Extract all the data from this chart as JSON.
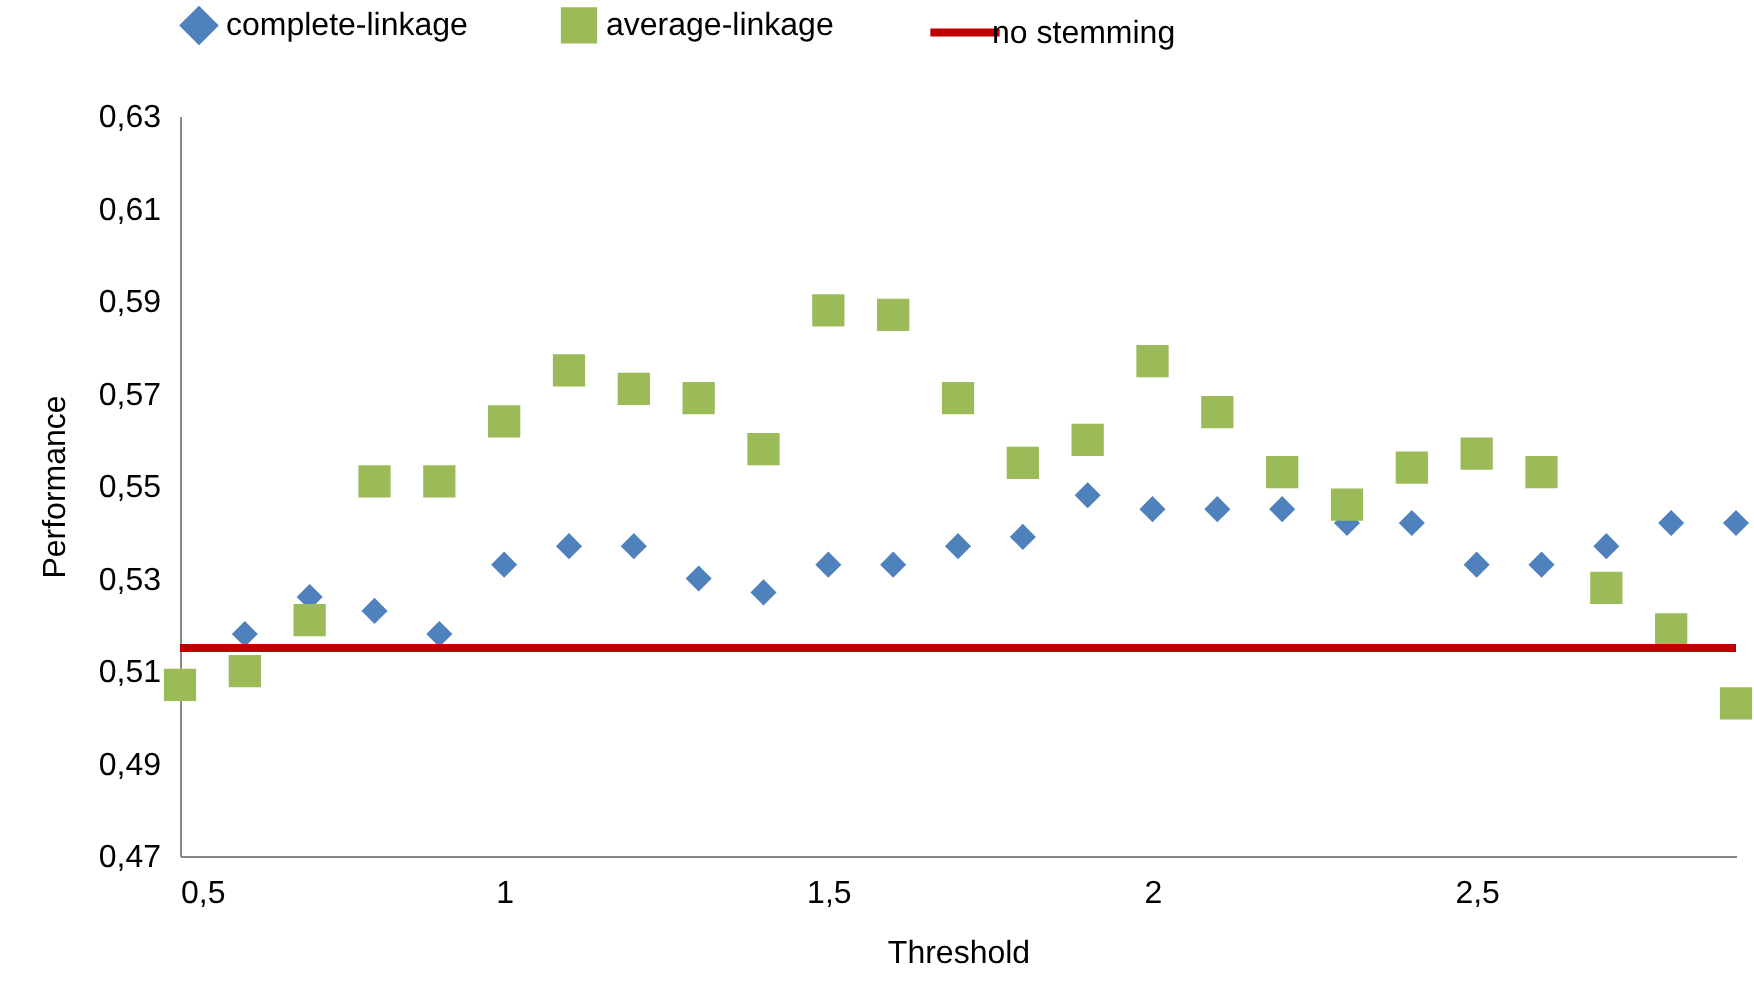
{
  "chart_data": {
    "type": "scatter",
    "xlabel": "Threshold",
    "ylabel": "Performance",
    "legend": "top",
    "grid": false,
    "xlim": [
      0.5,
      2.9
    ],
    "xticks": [
      {
        "value": 0.5,
        "label": "0,5"
      },
      1,
      {
        "value": 1.5,
        "label": "1,5"
      },
      2,
      {
        "value": 2.5,
        "label": "2,5"
      }
    ],
    "ylim": [
      0.47,
      0.63
    ],
    "yticks": [
      {
        "value": 0.47,
        "label": "0,47"
      },
      {
        "value": 0.49,
        "label": "0,49"
      },
      {
        "value": 0.51,
        "label": "0,51"
      },
      {
        "value": 0.53,
        "label": "0,53"
      },
      {
        "value": 0.55,
        "label": "0,55"
      },
      {
        "value": 0.57,
        "label": "0,57"
      },
      {
        "value": 0.59,
        "label": "0,59"
      },
      {
        "value": 0.61,
        "label": "0,61"
      },
      {
        "value": 0.63,
        "label": "0,63"
      }
    ],
    "series": [
      {
        "name": "complete-linkage",
        "color": "#4f81bd",
        "marker": "diamond",
        "x": [
          0.6,
          0.7,
          0.8,
          0.9,
          1.0,
          1.1,
          1.2,
          1.3,
          1.4,
          1.5,
          1.6,
          1.7,
          1.8,
          1.9,
          2.0,
          2.1,
          2.2,
          2.3,
          2.4,
          2.5,
          2.6,
          2.7,
          2.8,
          2.9
        ],
        "values": [
          0.518,
          0.526,
          0.523,
          0.518,
          0.533,
          0.537,
          0.537,
          0.53,
          0.527,
          0.533,
          0.533,
          0.537,
          0.539,
          0.548,
          0.545,
          0.545,
          0.545,
          0.542,
          0.542,
          0.533,
          0.533,
          0.537,
          0.542,
          0.542
        ]
      },
      {
        "name": "average-linkage",
        "color": "#9bbb59",
        "marker": "square",
        "x": [
          0.5,
          0.6,
          0.7,
          0.8,
          0.9,
          1.0,
          1.1,
          1.2,
          1.3,
          1.4,
          1.5,
          1.6,
          1.7,
          1.8,
          1.9,
          2.0,
          2.1,
          2.2,
          2.3,
          2.4,
          2.5,
          2.6,
          2.7,
          2.8,
          2.9
        ],
        "values": [
          0.507,
          0.51,
          0.521,
          0.551,
          0.551,
          0.564,
          0.575,
          0.571,
          0.569,
          0.558,
          0.588,
          0.587,
          0.569,
          0.555,
          0.56,
          0.577,
          0.566,
          0.553,
          0.546,
          0.554,
          0.557,
          0.553,
          0.528,
          0.519,
          0.503
        ]
      }
    ],
    "ref_lines": [
      {
        "axis": "y",
        "value": 0.515,
        "label": "no stemming",
        "color": "#c00000"
      }
    ]
  }
}
